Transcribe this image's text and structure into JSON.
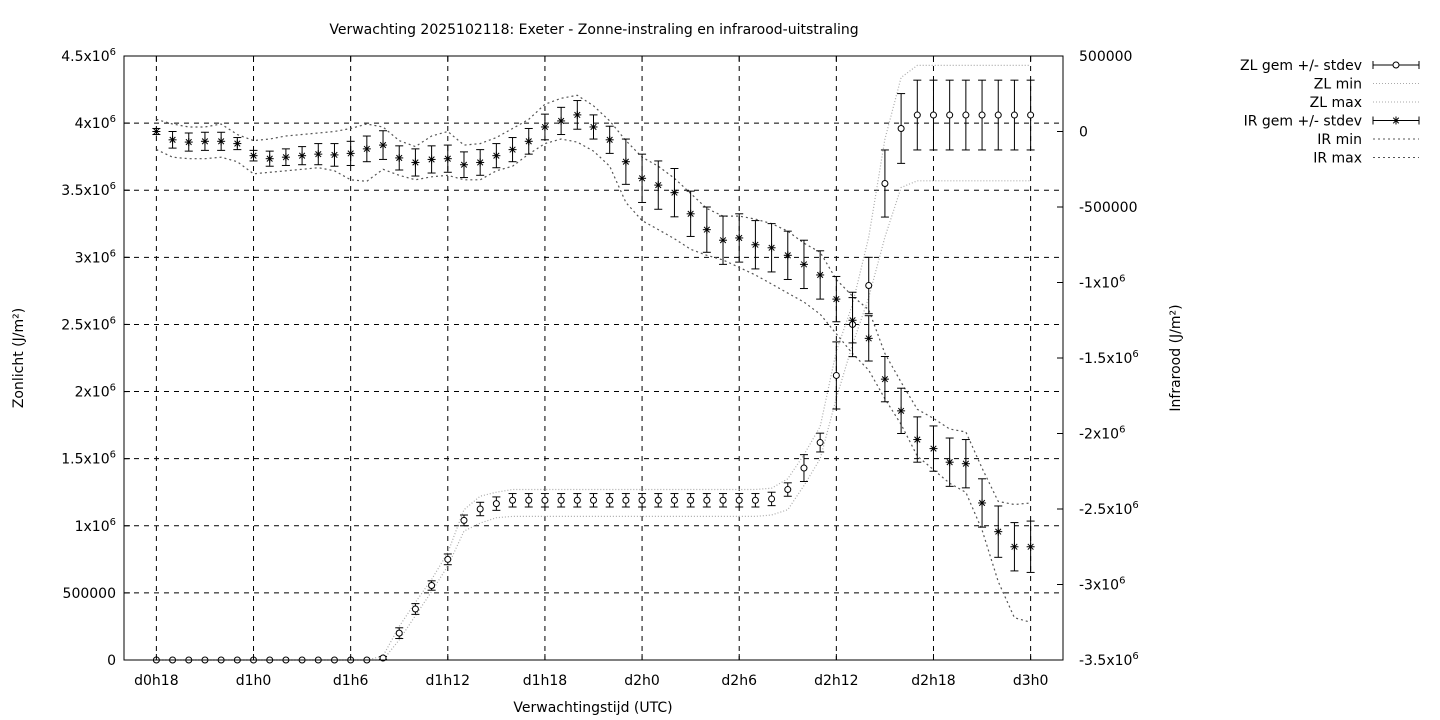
{
  "chart_data": {
    "type": "line",
    "title": "Verwachting 2025102118: Exeter - Zonne-instraling en infrarood-uitstraling",
    "xlabel": "Verwachtingstijd (UTC)",
    "ylabel": "Zonlicht (J/m²)",
    "y2label": "Infrarood (J/m²)",
    "grid": true,
    "legend_position": "outside-right",
    "x_unit": "hours since d0h18",
    "xlim": [
      -2,
      56
    ],
    "ylim": [
      0,
      4500000
    ],
    "y2lim": [
      -3500000,
      500000
    ],
    "x_ticks": [
      {
        "value": 0,
        "label": "d0h18"
      },
      {
        "value": 6,
        "label": "d1h0"
      },
      {
        "value": 12,
        "label": "d1h6"
      },
      {
        "value": 18,
        "label": "d1h12"
      },
      {
        "value": 24,
        "label": "d1h18"
      },
      {
        "value": 30,
        "label": "d2h0"
      },
      {
        "value": 36,
        "label": "d2h6"
      },
      {
        "value": 42,
        "label": "d2h12"
      },
      {
        "value": 48,
        "label": "d2h18"
      },
      {
        "value": 54,
        "label": "d3h0"
      }
    ],
    "y_ticks": [
      {
        "value": 0,
        "base": "0",
        "exp": ""
      },
      {
        "value": 500000,
        "base": "500000",
        "exp": ""
      },
      {
        "value": 1000000,
        "base": "1x10",
        "exp": "6"
      },
      {
        "value": 1500000,
        "base": "1.5x10",
        "exp": "6"
      },
      {
        "value": 2000000,
        "base": "2x10",
        "exp": "6"
      },
      {
        "value": 2500000,
        "base": "2.5x10",
        "exp": "6"
      },
      {
        "value": 3000000,
        "base": "3x10",
        "exp": "6"
      },
      {
        "value": 3500000,
        "base": "3.5x10",
        "exp": "6"
      },
      {
        "value": 4000000,
        "base": "4x10",
        "exp": "6"
      },
      {
        "value": 4500000,
        "base": "4.5x10",
        "exp": "6"
      }
    ],
    "y2_ticks": [
      {
        "value": 500000,
        "base": "500000",
        "exp": ""
      },
      {
        "value": 0,
        "base": "0",
        "exp": ""
      },
      {
        "value": -500000,
        "base": "-500000",
        "exp": ""
      },
      {
        "value": -1000000,
        "base": "-1x10",
        "exp": "6"
      },
      {
        "value": -1500000,
        "base": "-1.5x10",
        "exp": "6"
      },
      {
        "value": -2000000,
        "base": "-2x10",
        "exp": "6"
      },
      {
        "value": -2500000,
        "base": "-2.5x10",
        "exp": "6"
      },
      {
        "value": -3000000,
        "base": "-3x10",
        "exp": "6"
      },
      {
        "value": -3500000,
        "base": "-3.5x10",
        "exp": "6"
      }
    ],
    "x": [
      0,
      1,
      2,
      3,
      4,
      5,
      6,
      7,
      8,
      9,
      10,
      11,
      12,
      13,
      14,
      15,
      16,
      17,
      18,
      19,
      20,
      21,
      22,
      23,
      24,
      25,
      26,
      27,
      28,
      29,
      30,
      31,
      32,
      33,
      34,
      35,
      36,
      37,
      38,
      39,
      40,
      41,
      42,
      43,
      44,
      45,
      46,
      47,
      48,
      49,
      50,
      51,
      52,
      53,
      54
    ],
    "series": [
      {
        "name": "ZL gem +/- stdev",
        "axis": "y1",
        "style": "errorbars-circle",
        "values": [
          0,
          0,
          0,
          0,
          0,
          0,
          0,
          0,
          0,
          0,
          0,
          0,
          0,
          0,
          15000,
          200000,
          380000,
          555000,
          750000,
          1040000,
          1125000,
          1165000,
          1190000,
          1190000,
          1190000,
          1190000,
          1190000,
          1190000,
          1190000,
          1190000,
          1190000,
          1190000,
          1190000,
          1190000,
          1190000,
          1190000,
          1190000,
          1190000,
          1200000,
          1270000,
          1430000,
          1620000,
          2120000,
          2500000,
          2790000,
          3550000,
          3960000,
          4060000,
          4060000,
          4060000,
          4060000,
          4060000,
          4060000,
          4060000,
          4060000
        ],
        "stdev": [
          0,
          0,
          0,
          0,
          0,
          0,
          0,
          0,
          0,
          0,
          0,
          0,
          0,
          0,
          10000,
          40000,
          40000,
          35000,
          40000,
          40000,
          50000,
          50000,
          50000,
          50000,
          50000,
          50000,
          50000,
          50000,
          50000,
          50000,
          50000,
          50000,
          50000,
          50000,
          50000,
          50000,
          50000,
          50000,
          50000,
          50000,
          100000,
          70000,
          250000,
          240000,
          210000,
          250000,
          260000,
          260000,
          260000,
          260000,
          260000,
          260000,
          260000,
          260000,
          260000
        ]
      },
      {
        "name": "ZL min",
        "axis": "y1",
        "style": "dotted",
        "values": [
          0,
          0,
          0,
          0,
          0,
          0,
          0,
          0,
          0,
          0,
          0,
          0,
          0,
          0,
          0,
          150000,
          330000,
          510000,
          700000,
          960000,
          1020000,
          1060000,
          1070000,
          1070000,
          1070000,
          1070000,
          1070000,
          1070000,
          1070000,
          1070000,
          1070000,
          1070000,
          1070000,
          1070000,
          1070000,
          1070000,
          1070000,
          1070000,
          1080000,
          1120000,
          1300000,
          1500000,
          1950000,
          2350000,
          2700000,
          3150000,
          3520000,
          3570000,
          3570000,
          3570000,
          3570000,
          3570000,
          3570000,
          3570000,
          3570000
        ]
      },
      {
        "name": "ZL max",
        "axis": "y1",
        "style": "dotted",
        "values": [
          0,
          0,
          0,
          0,
          0,
          0,
          0,
          0,
          0,
          0,
          0,
          0,
          0,
          0,
          30000,
          250000,
          430000,
          600000,
          800000,
          1120000,
          1220000,
          1250000,
          1270000,
          1270000,
          1270000,
          1270000,
          1270000,
          1270000,
          1270000,
          1270000,
          1270000,
          1270000,
          1270000,
          1270000,
          1270000,
          1270000,
          1270000,
          1270000,
          1280000,
          1350000,
          1530000,
          1740000,
          2300000,
          2650000,
          3150000,
          3880000,
          4340000,
          4430000,
          4430000,
          4430000,
          4430000,
          4430000,
          4430000,
          4430000,
          4430000
        ]
      },
      {
        "name": "IR gem +/- stdev",
        "axis": "y2",
        "style": "errorbars-star",
        "values": [
          0,
          -55000,
          -70000,
          -65000,
          -65000,
          -80000,
          -160000,
          -180000,
          -170000,
          -160000,
          -150000,
          -155000,
          -145000,
          -115000,
          -90000,
          -175000,
          -205000,
          -185000,
          -180000,
          -220000,
          -205000,
          -160000,
          -120000,
          -65000,
          30000,
          70000,
          110000,
          30000,
          -55000,
          -200000,
          -310000,
          -355000,
          -405000,
          -545000,
          -650000,
          -720000,
          -705000,
          -750000,
          -770000,
          -820000,
          -880000,
          -950000,
          -1110000,
          -1250000,
          -1370000,
          -1640000,
          -1850000,
          -2040000,
          -2100000,
          -2190000,
          -2200000,
          -2460000,
          -2650000,
          -2750000,
          -2750000
        ],
        "stdev": [
          20000,
          55000,
          60000,
          60000,
          60000,
          40000,
          35000,
          50000,
          55000,
          60000,
          70000,
          75000,
          80000,
          85000,
          95000,
          80000,
          90000,
          90000,
          90000,
          85000,
          85000,
          80000,
          80000,
          85000,
          85000,
          90000,
          95000,
          80000,
          90000,
          150000,
          160000,
          160000,
          160000,
          150000,
          150000,
          160000,
          160000,
          160000,
          160000,
          160000,
          160000,
          160000,
          150000,
          150000,
          150000,
          150000,
          150000,
          150000,
          150000,
          160000,
          160000,
          160000,
          170000,
          160000,
          170000
        ]
      },
      {
        "name": "IR min",
        "axis": "y2",
        "style": "dotted",
        "values": [
          -120000,
          -170000,
          -180000,
          -180000,
          -170000,
          -200000,
          -280000,
          -270000,
          -260000,
          -250000,
          -240000,
          -260000,
          -320000,
          -330000,
          -250000,
          -290000,
          -320000,
          -300000,
          -290000,
          -320000,
          -320000,
          -260000,
          -230000,
          -150000,
          -80000,
          -50000,
          -70000,
          -130000,
          -230000,
          -470000,
          -590000,
          -650000,
          -710000,
          -780000,
          -820000,
          -850000,
          -900000,
          -950000,
          -1010000,
          -1070000,
          -1130000,
          -1210000,
          -1340000,
          -1470000,
          -1580000,
          -1770000,
          -1940000,
          -2150000,
          -2240000,
          -2330000,
          -2390000,
          -2640000,
          -2980000,
          -3220000,
          -3250000
        ]
      },
      {
        "name": "IR max",
        "axis": "y2",
        "style": "dotted",
        "values": [
          80000,
          50000,
          30000,
          30000,
          50000,
          -20000,
          -60000,
          -50000,
          -30000,
          -20000,
          -10000,
          0,
          20000,
          50000,
          30000,
          -60000,
          -100000,
          -30000,
          0,
          -90000,
          -80000,
          -40000,
          20000,
          80000,
          180000,
          220000,
          240000,
          170000,
          70000,
          -60000,
          -170000,
          -230000,
          -310000,
          -410000,
          -510000,
          -560000,
          -560000,
          -580000,
          -610000,
          -660000,
          -740000,
          -800000,
          -980000,
          -1090000,
          -1180000,
          -1470000,
          -1660000,
          -1840000,
          -1900000,
          -1970000,
          -1990000,
          -2230000,
          -2450000,
          -2470000,
          -2460000
        ]
      }
    ]
  }
}
